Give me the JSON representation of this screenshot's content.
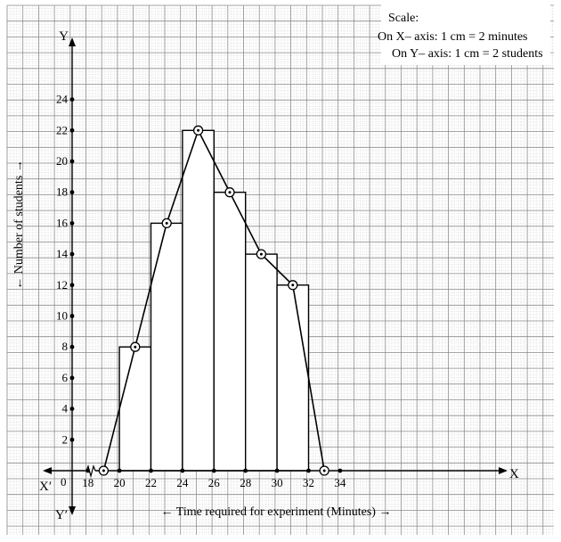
{
  "chart_data": {
    "type": "bar",
    "subtype": "histogram with frequency polygon",
    "x_axis_letter": "X",
    "x_axis_neg_letter": "X′",
    "y_axis_letter": "Y",
    "y_axis_neg_letter": "Y′",
    "origin_label": "0",
    "xlabel": "← Time required for experiment (Minutes) →",
    "ylabel": "← Number of students →",
    "scale": {
      "title": "Scale:",
      "x_line": "On X– axis: 1 cm = 2 minutes",
      "y_line": "On Y– axis: 1 cm = 2 students"
    },
    "xlim": [
      17,
      35
    ],
    "ylim": [
      0,
      24
    ],
    "x_ticks": [
      "18",
      "20",
      "22",
      "24",
      "26",
      "28",
      "30",
      "32",
      "34"
    ],
    "x_tick_values": [
      18,
      20,
      22,
      24,
      26,
      28,
      30,
      32,
      34
    ],
    "y_ticks": [
      "2",
      "4",
      "6",
      "8",
      "10",
      "12",
      "14",
      "16",
      "18",
      "20",
      "22",
      "24"
    ],
    "y_tick_values": [
      2,
      4,
      6,
      8,
      10,
      12,
      14,
      16,
      18,
      20,
      22,
      24
    ],
    "axis_break": true,
    "bins": [
      {
        "start": 20,
        "end": 22,
        "value": 8
      },
      {
        "start": 22,
        "end": 24,
        "value": 16
      },
      {
        "start": 24,
        "end": 26,
        "value": 22
      },
      {
        "start": 26,
        "end": 28,
        "value": 18
      },
      {
        "start": 28,
        "end": 30,
        "value": 14
      },
      {
        "start": 30,
        "end": 32,
        "value": 12
      }
    ],
    "polygon": {
      "x": [
        19,
        21,
        23,
        25,
        27,
        29,
        31,
        33
      ],
      "y": [
        0,
        8,
        16,
        22,
        18,
        14,
        12,
        0
      ]
    },
    "grid": true
  },
  "colors": {
    "grid_fine": "#c9c9c9",
    "grid_major": "#8a8a8a",
    "ink": "#000000",
    "bar_fill": "#ffffff"
  }
}
